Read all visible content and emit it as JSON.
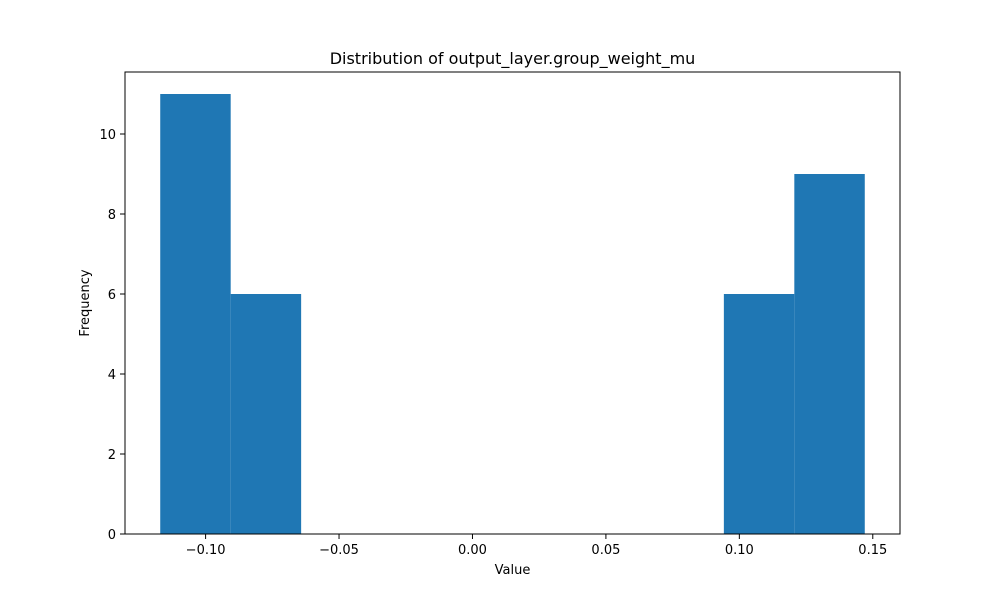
{
  "chart_data": {
    "type": "bar",
    "title": "Distribution of output_layer.group_weight_mu",
    "xlabel": "Value",
    "ylabel": "Frequency",
    "bin_edges": [
      -0.117,
      -0.0906,
      -0.0642,
      -0.0378,
      -0.0114,
      0.015,
      0.0414,
      0.0678,
      0.0942,
      0.1206,
      0.147
    ],
    "values": [
      11,
      6,
      0,
      0,
      0,
      0,
      0,
      0,
      6,
      9
    ],
    "xlim": [
      -0.1302,
      0.1602
    ],
    "ylim": [
      0,
      11.55
    ],
    "x_ticks": [
      -0.1,
      -0.05,
      0.0,
      0.05,
      0.1,
      0.15
    ],
    "x_tick_labels": [
      "−0.10",
      "−0.05",
      "0.00",
      "0.05",
      "0.10",
      "0.15"
    ],
    "y_ticks": [
      0,
      2,
      4,
      6,
      8,
      10
    ],
    "y_tick_labels": [
      "0",
      "2",
      "4",
      "6",
      "8",
      "10"
    ],
    "bar_color": "#1f77b4",
    "grid": false,
    "legend": "none"
  }
}
